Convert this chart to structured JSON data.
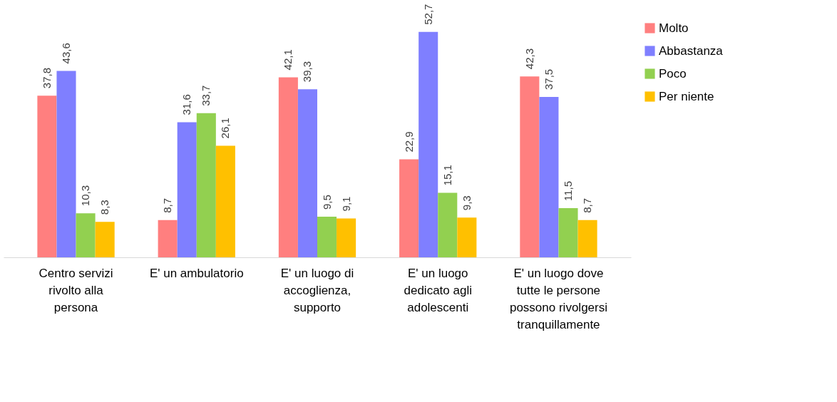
{
  "chart_data": {
    "type": "bar",
    "categories": [
      "Centro servizi rivolto alla persona",
      "E' un ambulatorio",
      "E' un luogo di accoglienza, supporto",
      "E' un luogo dedicato agli adolescenti",
      "E' un luogo dove tutte le persone possono rivolgersi tranquillamente"
    ],
    "series": [
      {
        "name": "Molto",
        "color": "#ff7f7f",
        "values": [
          37.8,
          8.7,
          42.1,
          22.9,
          42.3
        ],
        "value_labels": [
          "37,8",
          "8,7",
          "42,1",
          "22,9",
          "42,3"
        ]
      },
      {
        "name": "Abbastanza",
        "color": "#7f7fff",
        "values": [
          43.6,
          31.6,
          39.3,
          52.7,
          37.5
        ],
        "value_labels": [
          "43,6",
          "31,6",
          "39,3",
          "52,7",
          "37,5"
        ]
      },
      {
        "name": "Poco",
        "color": "#92d050",
        "values": [
          10.3,
          33.7,
          9.5,
          15.1,
          11.5
        ],
        "value_labels": [
          "10,3",
          "33,7",
          "9,5",
          "15,1",
          "11,5"
        ]
      },
      {
        "name": "Per niente",
        "color": "#ffc000",
        "values": [
          8.3,
          26.1,
          9.1,
          9.3,
          8.7
        ],
        "value_labels": [
          "8,3",
          "26,1",
          "9,1",
          "9,3",
          "8,7"
        ]
      }
    ],
    "legend": "right",
    "grid": false
  }
}
